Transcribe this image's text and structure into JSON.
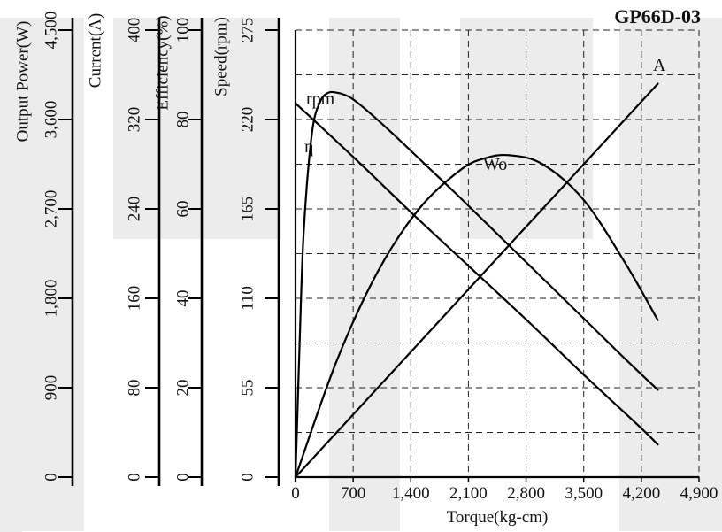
{
  "chart_data": {
    "type": "line",
    "title": "GP66D-03",
    "xlabel": "Torque(kg-cm)",
    "x_ticks": [
      "0",
      "700",
      "1,400",
      "2,100",
      "2,800",
      "3,500",
      "4,200",
      "4,900"
    ],
    "xlim": [
      0,
      4900
    ],
    "grid": true,
    "y_axes": [
      {
        "key": "power",
        "label": "Output Power(W)",
        "ticks": [
          "0",
          "900",
          "1,800",
          "2,700",
          "3,600",
          "4,500"
        ],
        "ylim": [
          0,
          4500
        ]
      },
      {
        "key": "current",
        "label": "Current(A)",
        "ticks": [
          "0",
          "80",
          "160",
          "240",
          "320",
          "400"
        ],
        "ylim": [
          0,
          400
        ]
      },
      {
        "key": "efficiency",
        "label": "Efficiency(%)",
        "ticks": [
          "0",
          "20",
          "40",
          "60",
          "80",
          "100"
        ],
        "ylim": [
          0,
          100
        ]
      },
      {
        "key": "speed",
        "label": "Speed(rpm)",
        "ticks": [
          "0",
          "55",
          "110",
          "165",
          "220",
          "275"
        ],
        "ylim": [
          0,
          275
        ]
      }
    ],
    "series": [
      {
        "name": "rpm",
        "axis": "speed",
        "x": [
          0,
          700,
          1400,
          2100,
          2800,
          3500,
          4200,
          4400
        ],
        "y": [
          230,
          197,
          163,
          130,
          97,
          63,
          30,
          20
        ]
      },
      {
        "name": "η",
        "axis": "efficiency",
        "x": [
          0,
          50,
          100,
          200,
          300,
          400,
          500,
          600,
          700,
          900,
          1200,
          1600,
          2000,
          2500,
          3000,
          3500,
          4000,
          4400
        ],
        "y": [
          0,
          30,
          55,
          77,
          84,
          86,
          86,
          85.5,
          84.5,
          81.5,
          76.5,
          69.5,
          62.5,
          53.5,
          44.5,
          35.5,
          26.5,
          19.5
        ]
      },
      {
        "name": "Wo",
        "axis": "power",
        "x": [
          0,
          500,
          1000,
          1500,
          2000,
          2300,
          2600,
          3000,
          3500,
          4000,
          4400
        ],
        "y": [
          0,
          1170,
          2070,
          2700,
          3090,
          3210,
          3240,
          3150,
          2790,
          2160,
          1580
        ]
      },
      {
        "name": "A",
        "axis": "current",
        "x": [
          0,
          4400
        ],
        "y": [
          0,
          352
        ]
      }
    ],
    "curve_labels": [
      "rpm",
      "η",
      "Wo",
      "A"
    ]
  }
}
